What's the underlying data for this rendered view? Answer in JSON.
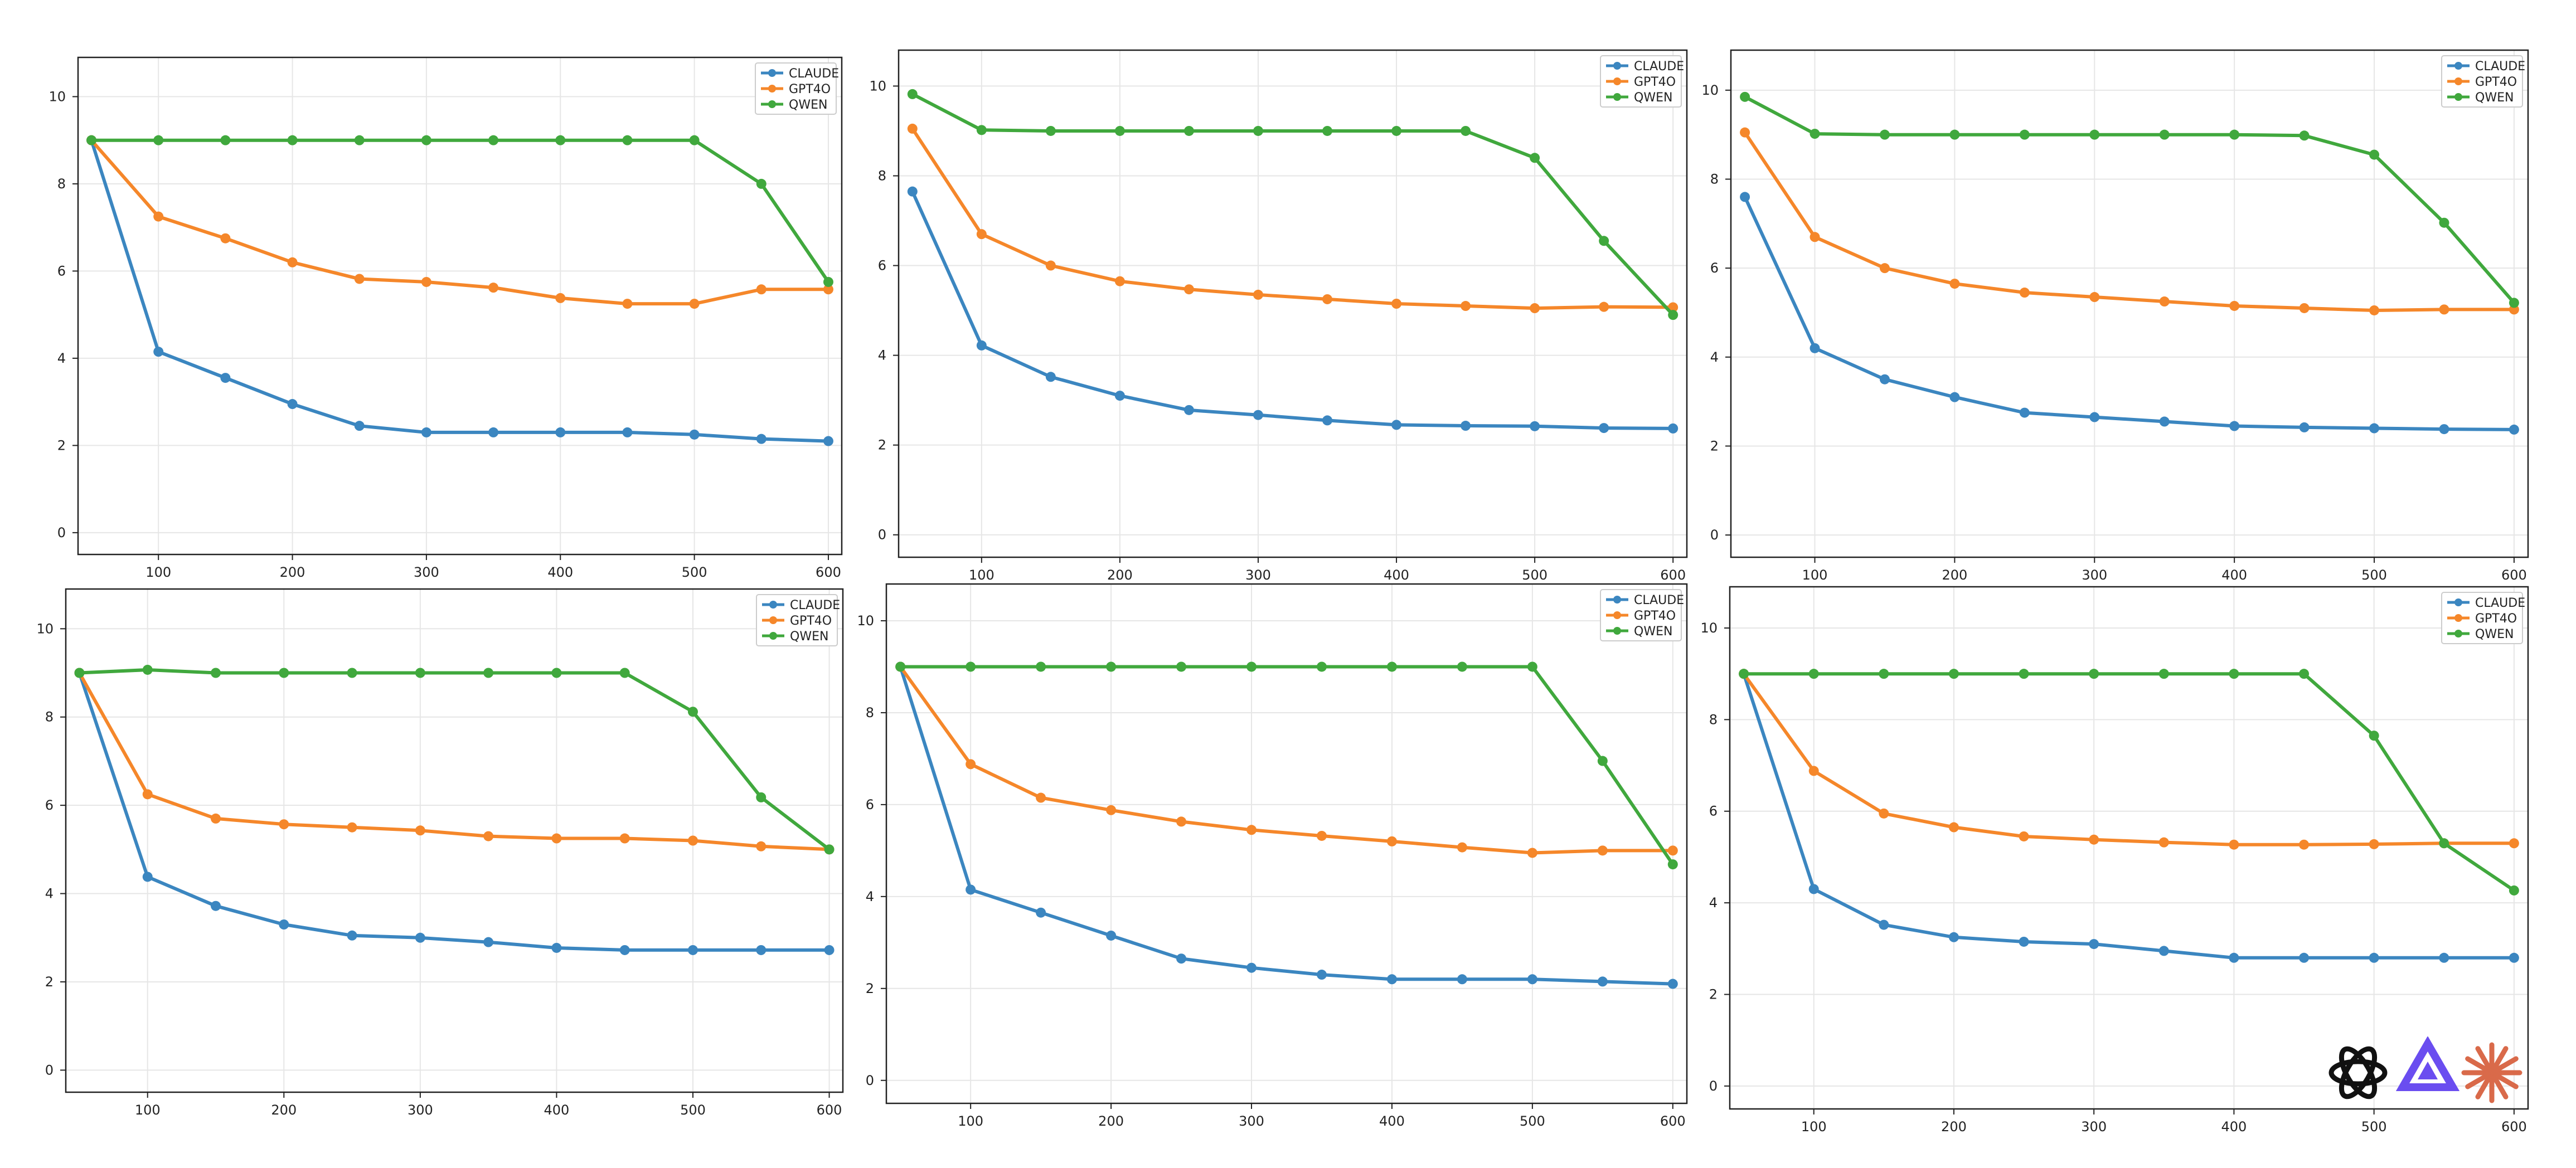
{
  "colors": {
    "CLAUDE": "#3b86c0",
    "GPT4O": "#f5872a",
    "QWEN": "#40a83d"
  },
  "logos": [
    "openai-logo",
    "qwen-logo",
    "claude-logo"
  ],
  "chart_data": [
    {
      "type": "line",
      "grid": true,
      "legend": "top-right",
      "x": [
        50,
        100,
        150,
        200,
        250,
        300,
        350,
        400,
        450,
        500,
        550,
        600
      ],
      "xticks": [
        100,
        200,
        300,
        400,
        500,
        600
      ],
      "yticks": [
        0,
        2,
        4,
        6,
        8,
        10
      ],
      "xlim": [
        40,
        610
      ],
      "ylim": [
        -0.5,
        10.9
      ],
      "series": [
        {
          "name": "CLAUDE",
          "values": [
            9,
            4.15,
            3.55,
            2.95,
            2.45,
            2.3,
            2.3,
            2.3,
            2.3,
            2.25,
            2.15,
            2.1
          ]
        },
        {
          "name": "GPT4O",
          "values": [
            9,
            7.25,
            6.75,
            6.2,
            5.82,
            5.75,
            5.62,
            5.38,
            5.25,
            5.25,
            5.58,
            5.58
          ]
        },
        {
          "name": "QWEN",
          "values": [
            9,
            9,
            9,
            9,
            9,
            9,
            9,
            9,
            9,
            9,
            8,
            5.75
          ]
        }
      ]
    },
    {
      "type": "line",
      "grid": true,
      "legend": "top-right",
      "x": [
        50,
        100,
        150,
        200,
        250,
        300,
        350,
        400,
        450,
        500,
        550,
        600
      ],
      "xticks": [
        100,
        200,
        300,
        400,
        500,
        600
      ],
      "yticks": [
        0,
        2,
        4,
        6,
        8,
        10
      ],
      "xlim": [
        40,
        610
      ],
      "ylim": [
        -0.5,
        10.8
      ],
      "series": [
        {
          "name": "CLAUDE",
          "values": [
            7.65,
            4.22,
            3.52,
            3.1,
            2.78,
            2.67,
            2.55,
            2.45,
            2.43,
            2.42,
            2.38,
            2.37
          ]
        },
        {
          "name": "GPT4O",
          "values": [
            9.05,
            6.7,
            6,
            5.65,
            5.47,
            5.35,
            5.25,
            5.15,
            5.1,
            5.05,
            5.08,
            5.07
          ]
        },
        {
          "name": "QWEN",
          "values": [
            9.82,
            9.02,
            9,
            9,
            9,
            9,
            9,
            9,
            9,
            8.4,
            6.55,
            4.9
          ]
        }
      ]
    },
    {
      "type": "line",
      "grid": true,
      "legend": "top-right",
      "x": [
        50,
        100,
        150,
        200,
        250,
        300,
        350,
        400,
        450,
        500,
        550,
        600
      ],
      "xticks": [
        100,
        200,
        300,
        400,
        500,
        600
      ],
      "yticks": [
        0,
        2,
        4,
        6,
        8,
        10
      ],
      "xlim": [
        40,
        610
      ],
      "ylim": [
        -0.5,
        10.9
      ],
      "series": [
        {
          "name": "CLAUDE",
          "values": [
            7.6,
            4.2,
            3.5,
            3.1,
            2.75,
            2.65,
            2.55,
            2.45,
            2.42,
            2.4,
            2.38,
            2.37
          ]
        },
        {
          "name": "GPT4O",
          "values": [
            9.05,
            6.7,
            6,
            5.65,
            5.45,
            5.35,
            5.25,
            5.15,
            5.1,
            5.05,
            5.07,
            5.07
          ]
        },
        {
          "name": "QWEN",
          "values": [
            9.85,
            9.02,
            9,
            9,
            9,
            9,
            9,
            9,
            8.98,
            8.55,
            7.02,
            5.22
          ]
        }
      ]
    },
    {
      "type": "line",
      "grid": true,
      "legend": "top-right",
      "x": [
        50,
        100,
        150,
        200,
        250,
        300,
        350,
        400,
        450,
        500,
        550,
        600
      ],
      "xticks": [
        100,
        200,
        300,
        400,
        500,
        600
      ],
      "yticks": [
        0,
        2,
        4,
        6,
        8,
        10
      ],
      "xlim": [
        40,
        610
      ],
      "ylim": [
        -0.5,
        10.9
      ],
      "series": [
        {
          "name": "CLAUDE",
          "values": [
            9,
            4.38,
            3.72,
            3.3,
            3.05,
            3,
            2.9,
            2.77,
            2.72,
            2.72,
            2.72,
            2.72
          ]
        },
        {
          "name": "GPT4O",
          "values": [
            9,
            6.25,
            5.7,
            5.57,
            5.5,
            5.43,
            5.3,
            5.25,
            5.25,
            5.2,
            5.07,
            5
          ]
        },
        {
          "name": "QWEN",
          "values": [
            9,
            9.07,
            9,
            9,
            9,
            9,
            9,
            9,
            9,
            8.12,
            6.18,
            5
          ]
        }
      ]
    },
    {
      "type": "line",
      "grid": true,
      "legend": "top-right",
      "x": [
        50,
        100,
        150,
        200,
        250,
        300,
        350,
        400,
        450,
        500,
        550,
        600
      ],
      "xticks": [
        100,
        200,
        300,
        400,
        500,
        600
      ],
      "yticks": [
        0,
        2,
        4,
        6,
        8,
        10
      ],
      "xlim": [
        40,
        610
      ],
      "ylim": [
        -0.5,
        10.8
      ],
      "series": [
        {
          "name": "CLAUDE",
          "values": [
            9,
            4.15,
            3.65,
            3.15,
            2.65,
            2.45,
            2.3,
            2.2,
            2.2,
            2.2,
            2.15,
            2.1
          ]
        },
        {
          "name": "GPT4O",
          "values": [
            9,
            6.88,
            6.15,
            5.88,
            5.63,
            5.45,
            5.32,
            5.2,
            5.07,
            4.95,
            5,
            5
          ]
        },
        {
          "name": "QWEN",
          "values": [
            9,
            9,
            9,
            9,
            9,
            9,
            9,
            9,
            9,
            9,
            6.95,
            4.7
          ]
        }
      ]
    },
    {
      "type": "line",
      "grid": true,
      "legend": "top-right",
      "x": [
        50,
        100,
        150,
        200,
        250,
        300,
        350,
        400,
        450,
        500,
        550,
        600
      ],
      "xticks": [
        100,
        200,
        300,
        400,
        500,
        600
      ],
      "yticks": [
        0,
        2,
        4,
        6,
        8,
        10
      ],
      "xlim": [
        40,
        610
      ],
      "ylim": [
        -0.5,
        10.9
      ],
      "series": [
        {
          "name": "CLAUDE",
          "values": [
            9,
            4.3,
            3.52,
            3.25,
            3.15,
            3.1,
            2.95,
            2.8,
            2.8,
            2.8,
            2.8,
            2.8
          ]
        },
        {
          "name": "GPT4O",
          "values": [
            9,
            6.88,
            5.95,
            5.65,
            5.45,
            5.38,
            5.32,
            5.27,
            5.27,
            5.28,
            5.3,
            5.3
          ]
        },
        {
          "name": "QWEN",
          "values": [
            9,
            9,
            9,
            9,
            9,
            9,
            9,
            9,
            9,
            7.65,
            5.3,
            4.27
          ]
        }
      ]
    }
  ]
}
